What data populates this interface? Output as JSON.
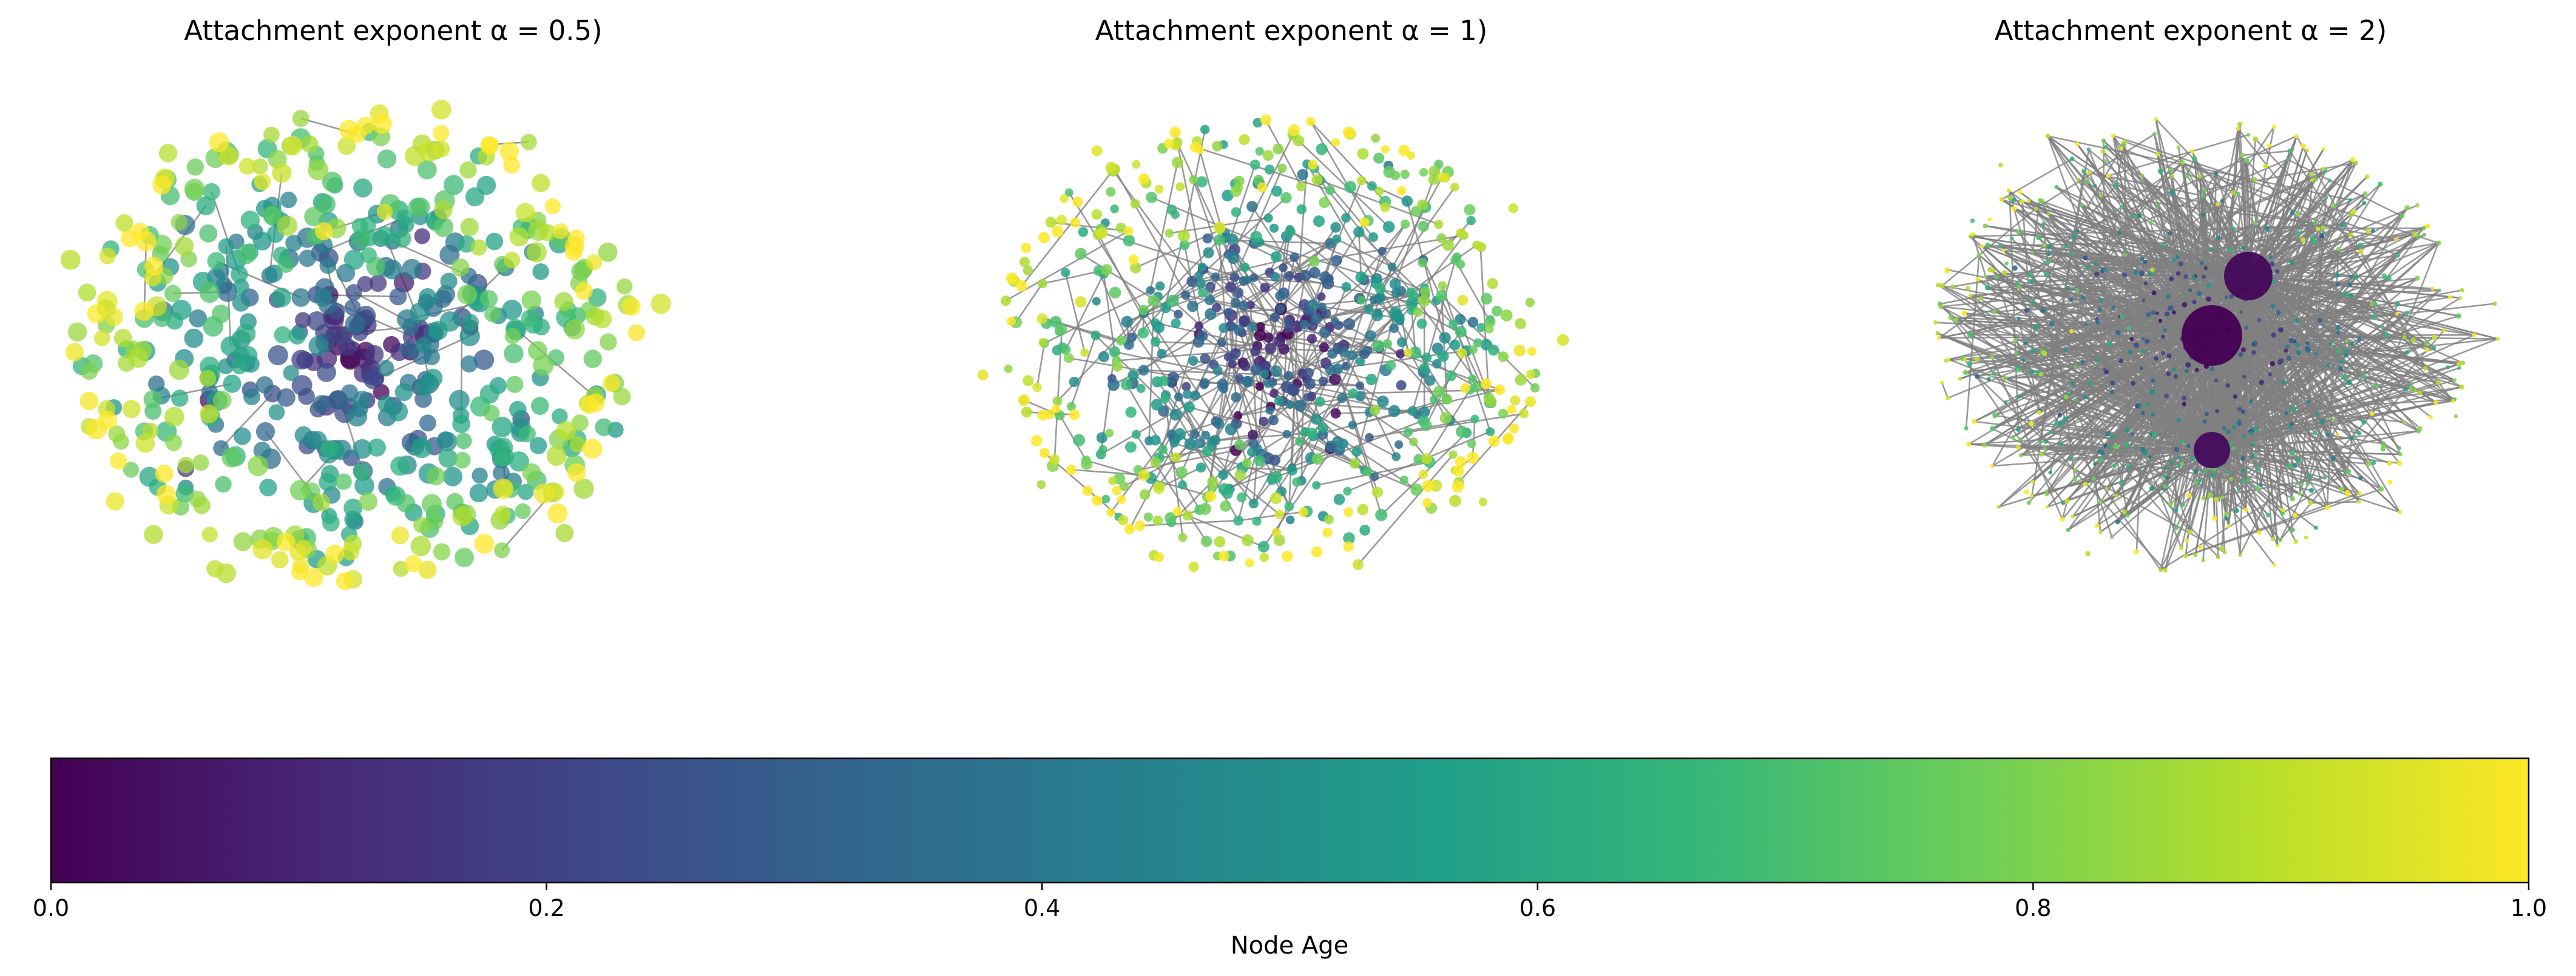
{
  "chart_data": [
    {
      "type": "scatter",
      "subtype": "network-graph",
      "title": "Attachment exponent α = 0.5)",
      "alpha": 0.5,
      "colormap": "viridis",
      "color_encodes": "Node Age",
      "size_encodes": "degree",
      "description_of_layout": "dense force-directed cluster; older (dark) nodes in centre, newer (yellow) on periphery; node sizes fairly uniform and large"
    },
    {
      "type": "scatter",
      "subtype": "network-graph",
      "title": "Attachment exponent α = 1)",
      "alpha": 1,
      "colormap": "viridis",
      "color_encodes": "Node Age",
      "size_encodes": "degree",
      "description_of_layout": "dense force-directed cluster; dark old nodes in centre, medium sized nodes with grey edges"
    },
    {
      "type": "scatter",
      "subtype": "network-graph",
      "title": "Attachment exponent α = 2)",
      "alpha": 2,
      "colormap": "viridis",
      "color_encodes": "Node Age",
      "size_encodes": "degree",
      "hubs": 3,
      "description_of_layout": "hub-dominated star structure; three large dark hub nodes, many tiny nodes connected by grey edges"
    }
  ],
  "colorbar": {
    "label": "Node Age",
    "colormap": "viridis",
    "range": [
      0.0,
      1.0
    ],
    "ticks": [
      "0.0",
      "0.2",
      "0.4",
      "0.6",
      "0.8",
      "1.0"
    ],
    "orientation": "horizontal"
  },
  "colors": {
    "edge": "#808080",
    "viridis_stops": [
      "#440154",
      "#482878",
      "#3e4989",
      "#31688e",
      "#26828e",
      "#1f9e89",
      "#35b779",
      "#6ece58",
      "#b5de2b",
      "#fde725"
    ]
  }
}
